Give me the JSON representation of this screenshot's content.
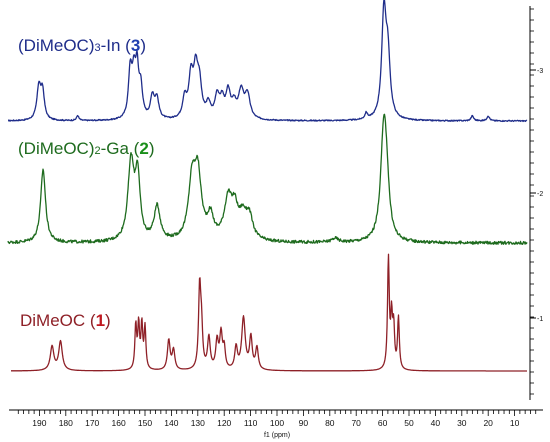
{
  "chart_data": {
    "type": "line",
    "xlabel": "f1 (ppm)",
    "xlim": [
      200,
      0
    ],
    "x_reversed": true,
    "x_ticks": [
      190,
      180,
      170,
      160,
      150,
      140,
      130,
      120,
      110,
      100,
      90,
      80,
      70,
      60,
      50,
      40,
      30,
      20,
      10
    ],
    "y_ticks": [
      "-3",
      "-2",
      "-1"
    ],
    "grid": false,
    "series": [
      {
        "name": "(DiMeOC)3-In (3)",
        "name_parts": {
          "pre": "(DiMeOC)",
          "sub": "3",
          "mid": "-In (",
          "num": "3",
          "post": ")"
        },
        "color": "#1f2d8a",
        "numColor": "#2040b0",
        "noise": 0.6,
        "peaks": [
          [
            190.2,
            33,
            0.9
          ],
          [
            188.8,
            27,
            0.8
          ],
          [
            175.5,
            5,
            0.5
          ],
          [
            155.6,
            47,
            0.8
          ],
          [
            154.2,
            40,
            0.8
          ],
          [
            153.0,
            45,
            0.7
          ],
          [
            151.6,
            30,
            0.8
          ],
          [
            147.2,
            22,
            0.9
          ],
          [
            145.5,
            20,
            0.9
          ],
          [
            135.0,
            20,
            0.9
          ],
          [
            132.6,
            40,
            1.0
          ],
          [
            130.8,
            44,
            1.0
          ],
          [
            129.4,
            32,
            1.0
          ],
          [
            126.0,
            14,
            1.0
          ],
          [
            122.7,
            22,
            1.0
          ],
          [
            120.8,
            18,
            1.0
          ],
          [
            118.5,
            26,
            1.0
          ],
          [
            116.3,
            14,
            1.0
          ],
          [
            113.6,
            27,
            1.2
          ],
          [
            111.2,
            24,
            1.2
          ],
          [
            66.2,
            6,
            0.6
          ],
          [
            59.5,
            104,
            1.0
          ],
          [
            58.0,
            58,
            1.0
          ],
          [
            26.0,
            5,
            0.6
          ],
          [
            20.0,
            5,
            0.6
          ]
        ]
      },
      {
        "name": "(DiMeOC)2-Ga (2)",
        "name_parts": {
          "pre": "(DiMeOC)",
          "sub": "2",
          "mid": "-Ga (",
          "num": "2",
          "post": ")"
        },
        "color": "#1e6b1e",
        "numColor": "#1a8f1a",
        "noise": 1.5,
        "peaks": [
          [
            188.6,
            73,
            1.1
          ],
          [
            155.3,
            78,
            1.4
          ],
          [
            152.8,
            62,
            1.1
          ],
          [
            145.4,
            34,
            1.4
          ],
          [
            132.2,
            55,
            1.6
          ],
          [
            130.0,
            62,
            1.6
          ],
          [
            125.2,
            22,
            1.4
          ],
          [
            118.5,
            40,
            1.8
          ],
          [
            116.0,
            26,
            1.4
          ],
          [
            113.0,
            22,
            1.8
          ],
          [
            110.5,
            22,
            1.6
          ],
          [
            78.0,
            4,
            1.5
          ],
          [
            59.6,
            104,
            1.4
          ],
          [
            58.5,
            40,
            1.2
          ]
        ]
      },
      {
        "name": "DiMeOC (1)",
        "name_parts": {
          "pre": "DiMeOC",
          "sub": "",
          "mid": " (",
          "num": "1",
          "post": ")"
        },
        "color": "#8e2027",
        "numColor": "#c01820",
        "noise": 0,
        "peaks": [
          [
            185.2,
            24,
            0.8
          ],
          [
            182.0,
            29,
            0.8
          ],
          [
            153.5,
            44,
            0.4
          ],
          [
            152.4,
            44,
            0.4
          ],
          [
            151.2,
            44,
            0.4
          ],
          [
            150.0,
            42,
            0.4
          ],
          [
            141.0,
            30,
            0.6
          ],
          [
            139.2,
            20,
            0.6
          ],
          [
            129.3,
            80,
            0.5
          ],
          [
            128.6,
            38,
            0.5
          ],
          [
            125.8,
            32,
            0.6
          ],
          [
            122.7,
            28,
            0.6
          ],
          [
            121.2,
            35,
            0.6
          ],
          [
            120.0,
            20,
            0.5
          ],
          [
            115.5,
            22,
            0.6
          ],
          [
            112.7,
            52,
            0.8
          ],
          [
            109.9,
            32,
            0.6
          ],
          [
            107.6,
            22,
            0.6
          ],
          [
            57.8,
            110,
            0.4
          ],
          [
            56.6,
            50,
            0.4
          ],
          [
            55.8,
            40,
            0.4
          ],
          [
            54.0,
            52,
            0.4
          ]
        ]
      }
    ]
  }
}
